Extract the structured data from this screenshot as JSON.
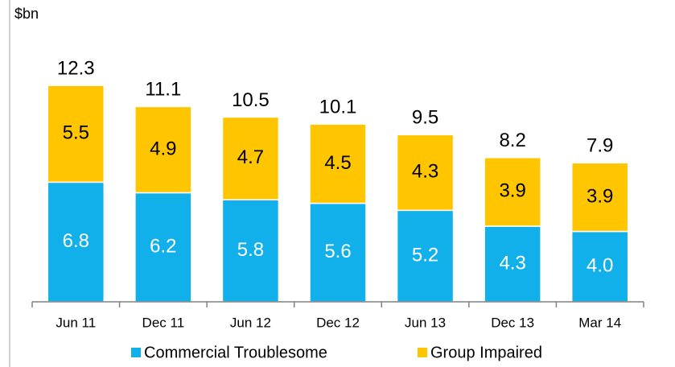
{
  "chart_data": {
    "type": "stacked_bar",
    "y_label": "$bn",
    "categories": [
      "Jun 11",
      "Dec 11",
      "Jun 12",
      "Dec 12",
      "Jun 13",
      "Dec 13",
      "Mar 14"
    ],
    "series": [
      {
        "name": "Commercial Troublesome",
        "color": "#12b0ea",
        "values": [
          6.8,
          6.2,
          5.8,
          5.6,
          5.2,
          4.3,
          4.0
        ],
        "value_labels": [
          "6.8",
          "6.2",
          "5.8",
          "5.6",
          "5.2",
          "4.3",
          "4.0"
        ]
      },
      {
        "name": "Group Impaired",
        "color": "#ffc600",
        "values": [
          5.5,
          4.9,
          4.7,
          4.5,
          4.3,
          3.9,
          3.9
        ]
      }
    ],
    "totals": [
      12.3,
      11.1,
      10.5,
      10.1,
      9.5,
      8.2,
      7.9
    ],
    "ylim": [
      0,
      14
    ]
  }
}
